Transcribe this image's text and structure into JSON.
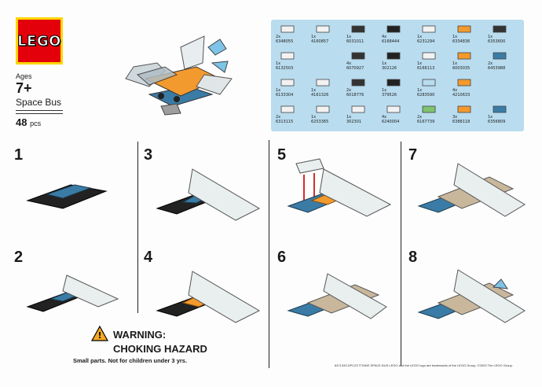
{
  "brand": {
    "logo_text": "LEGO",
    "color": "#e3000b",
    "border": "#ffd500"
  },
  "set": {
    "ages_label": "Ages",
    "ages_value": "7+",
    "name": "Space Bus",
    "pieces_count": "48",
    "pieces_unit": "pcs"
  },
  "parts": [
    {
      "qty": "2x",
      "id": "6348055"
    },
    {
      "qty": "1x",
      "id": "4160857"
    },
    {
      "qty": "1x",
      "id": "6031011"
    },
    {
      "qty": "4x",
      "id": "6168444"
    },
    {
      "qty": "1x",
      "id": "6231294"
    },
    {
      "qty": "1x",
      "id": "6334836"
    },
    {
      "qty": "1x",
      "id": "6353600"
    },
    {
      "qty": "1x",
      "id": "6132503"
    },
    {
      "qty": "",
      "id": ""
    },
    {
      "qty": "4x",
      "id": "6070927"
    },
    {
      "qty": "1x",
      "id": "302126"
    },
    {
      "qty": "1x",
      "id": "6166113"
    },
    {
      "qty": "1x",
      "id": "6003035"
    },
    {
      "qty": "2x",
      "id": "6453988"
    },
    {
      "qty": "1x",
      "id": "6133304"
    },
    {
      "qty": "1x",
      "id": "4161326"
    },
    {
      "qty": "2x",
      "id": "6018776"
    },
    {
      "qty": "1x",
      "id": "379526"
    },
    {
      "qty": "1x",
      "id": "6283590"
    },
    {
      "qty": "4x",
      "id": "4210633"
    },
    {
      "qty": "",
      "id": ""
    },
    {
      "qty": "2x",
      "id": "6313115"
    },
    {
      "qty": "1x",
      "id": "6253365"
    },
    {
      "qty": "1x",
      "id": "302301"
    },
    {
      "qty": "4x",
      "id": "6240004"
    },
    {
      "qty": "2x",
      "id": "6167739"
    },
    {
      "qty": "3x",
      "id": "6388118"
    },
    {
      "qty": "1x",
      "id": "6356809"
    }
  ],
  "steps": [
    "1",
    "2",
    "3",
    "4",
    "5",
    "6",
    "7",
    "8"
  ],
  "warning": {
    "title": "WARNING:",
    "hazard": "CHOKING HAZARD",
    "detail": "Small parts. Not for children under 3 yrs."
  },
  "legal": "6471333 DPC23 TITANS SPACE BUS   LEGO and the LEGO logo are trademarks of the LEGO Group. ©2023 The LEGO Group."
}
